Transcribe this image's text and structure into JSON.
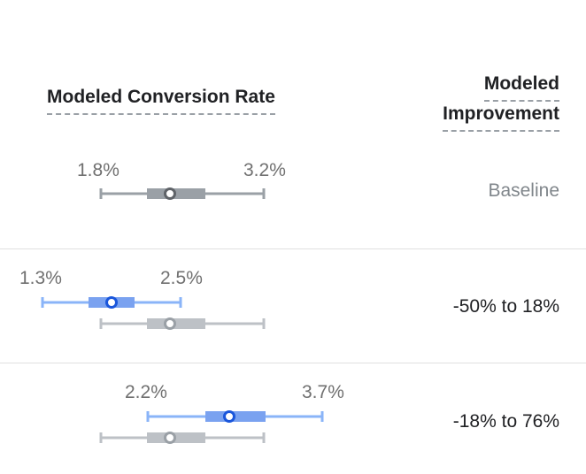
{
  "header": {
    "conversion_rate_label": "Modeled Conversion Rate",
    "improvement_label_line1": "Modeled",
    "improvement_label_line2": "Improvement"
  },
  "rows": [
    {
      "low_label": "1.8%",
      "high_label": "3.2%",
      "improvement": "Baseline"
    },
    {
      "low_label": "1.3%",
      "high_label": "2.5%",
      "improvement": "-50% to 18%"
    },
    {
      "low_label": "2.2%",
      "high_label": "3.7%",
      "improvement": "-18% to 76%"
    }
  ],
  "colors": {
    "baseline_bar": "#9aa0a6",
    "baseline_ref_bar": "#bdc1c6",
    "variant_bar": "#8ab4f8",
    "variant_box": "#7aa2f0",
    "variant_dot": "#1a56db"
  }
}
